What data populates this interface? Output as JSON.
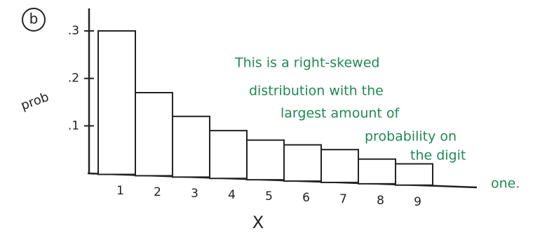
{
  "chart_data": {
    "type": "bar",
    "label": "b",
    "xlabel": "X",
    "ylabel": "prob",
    "categories": [
      "1",
      "2",
      "3",
      "4",
      "5",
      "6",
      "7",
      "8",
      "9"
    ],
    "values": [
      0.3,
      0.17,
      0.12,
      0.09,
      0.07,
      0.06,
      0.05,
      0.03,
      0.02
    ],
    "color": "#ffffff",
    "ylim": [
      0,
      0.34
    ],
    "yticks": [
      {
        "value": 0.1,
        "label": ".1"
      },
      {
        "value": 0.2,
        "label": ".2"
      },
      {
        "value": 0.3,
        "label": ".3"
      }
    ],
    "annotation": [
      "This is a right-skewed",
      "distribution with the",
      "largest amount of",
      "probability on",
      "the digit",
      "one."
    ],
    "annotation_color": "#1f8a52"
  }
}
